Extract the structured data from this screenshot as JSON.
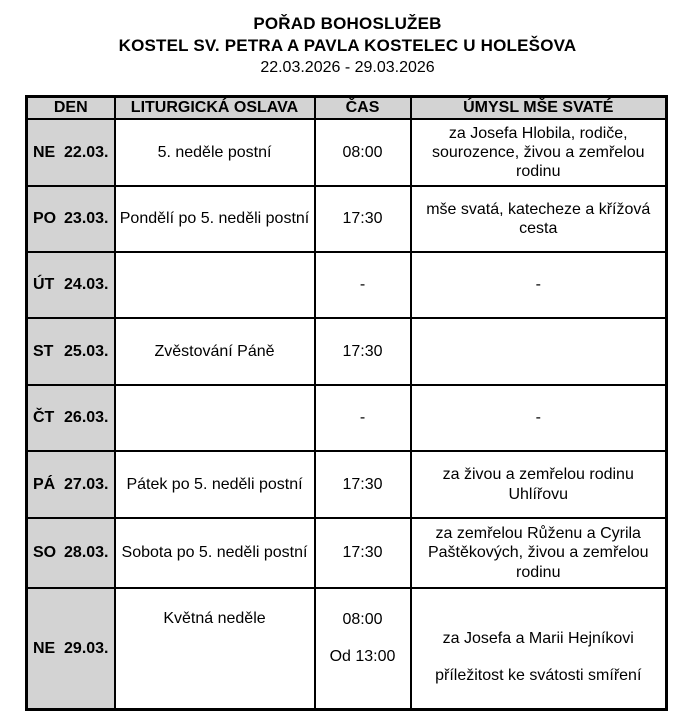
{
  "header": {
    "title": "POŘAD BOHOSLUŽEB",
    "subtitle": "KOSTEL SV. PETRA A PAVLA KOSTELEC U HOLEŠOVA",
    "date_range": "22.03.2026 - 29.03.2026"
  },
  "table": {
    "columns": [
      "DEN",
      "LITURGICKÁ OSLAVA",
      "ČAS",
      "ÚMYSL MŠE SVATÉ"
    ],
    "rows": [
      {
        "day": "NE",
        "date": "22.03.",
        "oslava": "5. neděle postní",
        "cas": "08:00",
        "umysl": "za Josefa Hlobila, rodiče,\nsourozence, živou a zemřelou\nrodinu"
      },
      {
        "day": "PO",
        "date": "23.03.",
        "oslava": "Pondělí po 5. neděli postní",
        "cas": "17:30",
        "umysl": "mše svatá, katecheze a křížová\ncesta"
      },
      {
        "day": "ÚT",
        "date": "24.03.",
        "oslava": "",
        "cas": "-",
        "umysl": "-"
      },
      {
        "day": "ST",
        "date": "25.03.",
        "oslava": "Zvěstování Páně",
        "cas": "17:30",
        "umysl": ""
      },
      {
        "day": "ČT",
        "date": "26.03.",
        "oslava": "",
        "cas": "-",
        "umysl": "-"
      },
      {
        "day": "PÁ",
        "date": "27.03.",
        "oslava": "Pátek po 5. neděli postní",
        "cas": "17:30",
        "umysl": "za živou a zemřelou rodinu\nUhlířovu"
      },
      {
        "day": "SO",
        "date": "28.03.",
        "oslava": "Sobota po 5. neděli postní",
        "cas": "17:30",
        "umysl": "za zemřelou Růženu a Cyrila\nPaštěkových, živou a zemřelou\nrodinu"
      },
      {
        "day": "NE",
        "date": "29.03.",
        "oslava": "Květná neděle",
        "times": [
          "08:00",
          "Od 13:00"
        ],
        "umysly": [
          "za Josefa a Marii Hejníkovi",
          "příležitost ke svátosti smíření"
        ]
      }
    ]
  },
  "colors": {
    "header_row_bg": "#d3d3d3",
    "day_column_bg": "#d3d3d3",
    "border": "#000000",
    "text": "#000000",
    "page_bg": "#ffffff"
  }
}
